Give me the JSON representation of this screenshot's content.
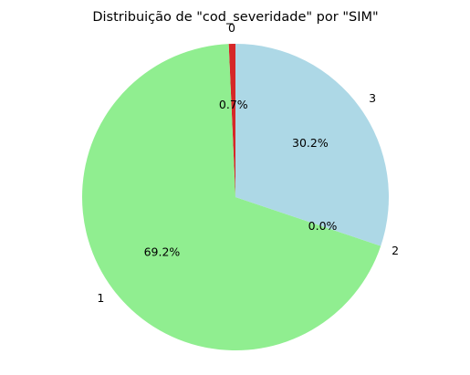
{
  "chart_data": {
    "type": "pie",
    "title": "Distribuição de \"cod_severidade\" por \"SIM\"",
    "start_angle_deg": 90,
    "direction": "counterclockwise",
    "slices": [
      {
        "label": "0",
        "value": 0.7,
        "pct_label": "0.7%",
        "color": "#d62728"
      },
      {
        "label": "1",
        "value": 69.2,
        "pct_label": "69.2%",
        "color": "#90ee90"
      },
      {
        "label": "2",
        "value": 0.0,
        "pct_label": "0.0%",
        "color": "#ffd700"
      },
      {
        "label": "3",
        "value": 30.2,
        "pct_label": "30.2%",
        "color": "#add8e6"
      }
    ]
  }
}
